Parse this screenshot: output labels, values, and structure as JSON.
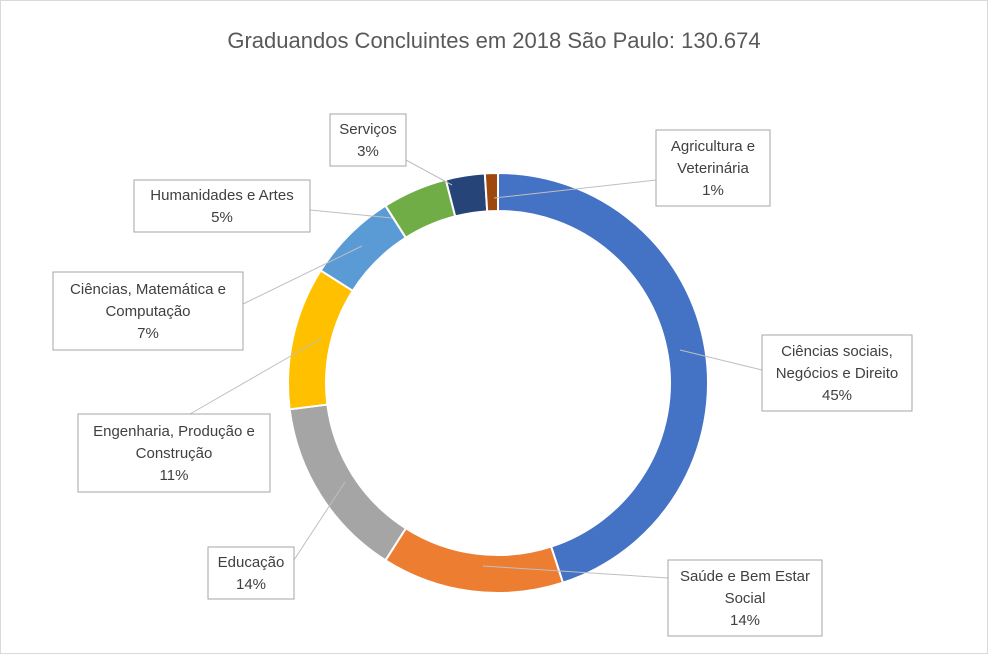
{
  "chart_data": {
    "type": "pie",
    "variant": "donut",
    "title": "Graduandos  Concluintes em 2018 São Paulo: 130.674",
    "slices": [
      {
        "label_lines": [
          "Ciências sociais,",
          "Negócios e Direito"
        ],
        "pct_label": "45%",
        "value": 45,
        "color": "#4472C4"
      },
      {
        "label_lines": [
          "Saúde e Bem Estar",
          "Social"
        ],
        "pct_label": "14%",
        "value": 14,
        "color": "#ED7D31"
      },
      {
        "label_lines": [
          "Educação"
        ],
        "pct_label": "14%",
        "value": 14,
        "color": "#A5A5A5"
      },
      {
        "label_lines": [
          "Engenharia, Produção e",
          "Construção"
        ],
        "pct_label": "11%",
        "value": 11,
        "color": "#FFC000"
      },
      {
        "label_lines": [
          "Ciências, Matemática e",
          "Computação"
        ],
        "pct_label": "7%",
        "value": 7,
        "color": "#5B9BD5"
      },
      {
        "label_lines": [
          "Humanidades e Artes"
        ],
        "pct_label": "5%",
        "value": 5,
        "color": "#70AD47"
      },
      {
        "label_lines": [
          "Serviços"
        ],
        "pct_label": "3%",
        "value": 3,
        "color": "#264478"
      },
      {
        "label_lines": [
          "Agricultura e",
          "Veterinária"
        ],
        "pct_label": "1%",
        "value": 1,
        "color": "#9E480E"
      }
    ]
  }
}
